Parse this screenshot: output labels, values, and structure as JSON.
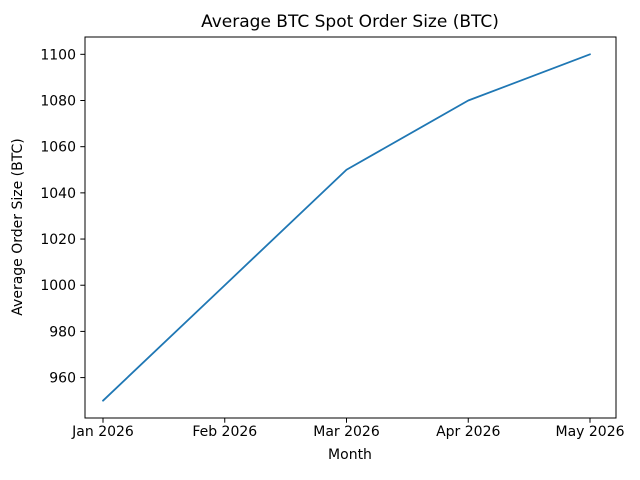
{
  "chart_data": {
    "type": "line",
    "title": "Average BTC Spot Order Size (BTC)",
    "xlabel": "Month",
    "ylabel": "Average Order Size (BTC)",
    "categories": [
      "Jan 2026",
      "Feb 2026",
      "Mar 2026",
      "Apr 2026",
      "May 2026"
    ],
    "series": [
      {
        "name": "Average BTC Spot Order Size",
        "values": [
          950,
          1000,
          1050,
          1080,
          1100
        ]
      }
    ],
    "yticks": [
      960,
      980,
      1000,
      1020,
      1040,
      1060,
      1080,
      1100
    ],
    "ylim": [
      942.5,
      1107.5
    ],
    "grid": false,
    "legend_position": "none",
    "line_color": "#1f77b4",
    "axis_color": "#000000",
    "background_color": "#ffffff"
  }
}
